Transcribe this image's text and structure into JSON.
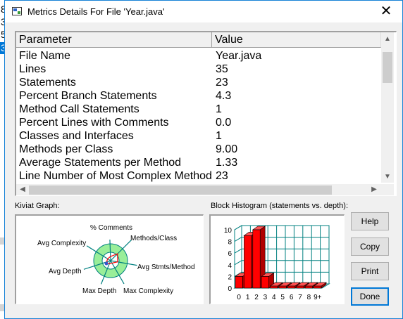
{
  "background_rows": [
    "8",
    "3",
    "5",
    "3"
  ],
  "window": {
    "title": "Metrics Details For File 'Year.java'",
    "close_glyph": "✕"
  },
  "table": {
    "headers": {
      "parameter": "Parameter",
      "value": "Value"
    },
    "rows": [
      {
        "parameter": "File Name",
        "value": "Year.java"
      },
      {
        "parameter": "Lines",
        "value": "35"
      },
      {
        "parameter": "Statements",
        "value": "23"
      },
      {
        "parameter": "Percent Branch Statements",
        "value": "4.3"
      },
      {
        "parameter": "Method Call Statements",
        "value": "1"
      },
      {
        "parameter": "Percent Lines with Comments",
        "value": "0.0"
      },
      {
        "parameter": "Classes and Interfaces",
        "value": "1"
      },
      {
        "parameter": "Methods per Class",
        "value": "9.00"
      },
      {
        "parameter": "Average Statements per Method",
        "value": "1.33"
      },
      {
        "parameter": "Line Number of Most Complex Method",
        "value": "23"
      }
    ]
  },
  "kiviat": {
    "label": "Kiviat Graph:",
    "axes": [
      "% Comments",
      "Methods/Class",
      "Avg Stmts/Method",
      "Max Complexity",
      "Max Depth",
      "Avg Depth",
      "Avg Complexity"
    ],
    "ring_color": "#99ee99",
    "spoke_color": "#008080",
    "value_color": "#ff0000"
  },
  "histogram": {
    "label": "Block Histogram (statements vs. depth):",
    "categories": [
      "0",
      "1",
      "2",
      "3",
      "4",
      "5",
      "6",
      "7",
      "8",
      "9+"
    ],
    "values": [
      2,
      9,
      10,
      2,
      0,
      0,
      0,
      0,
      0,
      0
    ],
    "y_ticks": [
      "0",
      "2",
      "4",
      "6",
      "8",
      "10"
    ],
    "ylim": [
      0,
      10
    ],
    "bar_color": "#ff0000",
    "grid_color": "#008080"
  },
  "buttons": {
    "help": "Help",
    "copy": "Copy",
    "print": "Print",
    "done": "Done"
  }
}
